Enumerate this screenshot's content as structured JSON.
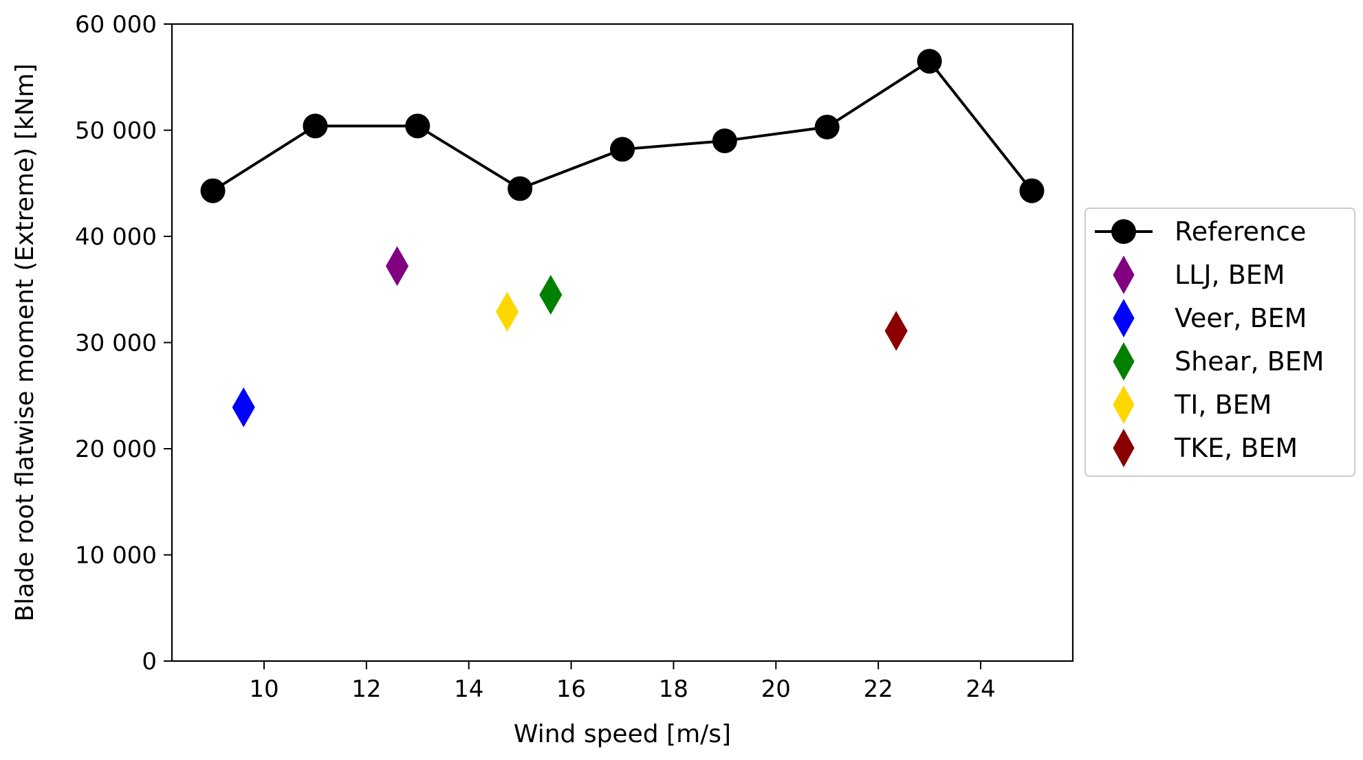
{
  "chart_data": {
    "type": "scatter",
    "xlabel": "Wind speed [m/s]",
    "ylabel": "Blade root flatwise moment (Extreme) [kNm]",
    "xlim": [
      8.2,
      25.8
    ],
    "ylim": [
      0,
      60000
    ],
    "xticks": [
      10,
      12,
      14,
      16,
      18,
      20,
      22,
      24
    ],
    "xtick_labels": [
      "10",
      "12",
      "14",
      "16",
      "18",
      "20",
      "22",
      "24"
    ],
    "yticks": [
      0,
      10000,
      20000,
      30000,
      40000,
      50000,
      60000
    ],
    "ytick_labels": [
      "0",
      "10 000",
      "20 000",
      "30 000",
      "40 000",
      "50 000",
      "60 000"
    ],
    "grid": false,
    "legend_position": "right-outside",
    "series": [
      {
        "name": "Reference",
        "marker": "circle",
        "line": true,
        "color": "#000000",
        "x": [
          9,
          11,
          13,
          15,
          17,
          19,
          21,
          23,
          25
        ],
        "y": [
          44300,
          50400,
          50400,
          44500,
          48200,
          49000,
          50300,
          56500,
          44300
        ]
      },
      {
        "name": "LLJ, BEM",
        "marker": "diamond",
        "line": false,
        "color": "#800080",
        "x": [
          12.6
        ],
        "y": [
          37200
        ]
      },
      {
        "name": "Veer, BEM",
        "marker": "diamond",
        "line": false,
        "color": "#0000ff",
        "x": [
          9.6
        ],
        "y": [
          23900
        ]
      },
      {
        "name": "Shear, BEM",
        "marker": "diamond",
        "line": false,
        "color": "#008000",
        "x": [
          15.6
        ],
        "y": [
          34500
        ]
      },
      {
        "name": "TI, BEM",
        "marker": "diamond",
        "line": false,
        "color": "#ffd700",
        "x": [
          14.75
        ],
        "y": [
          32900
        ]
      },
      {
        "name": "TKE, BEM",
        "marker": "diamond",
        "line": false,
        "color": "#8b0000",
        "x": [
          22.35
        ],
        "y": [
          31100
        ]
      }
    ]
  }
}
